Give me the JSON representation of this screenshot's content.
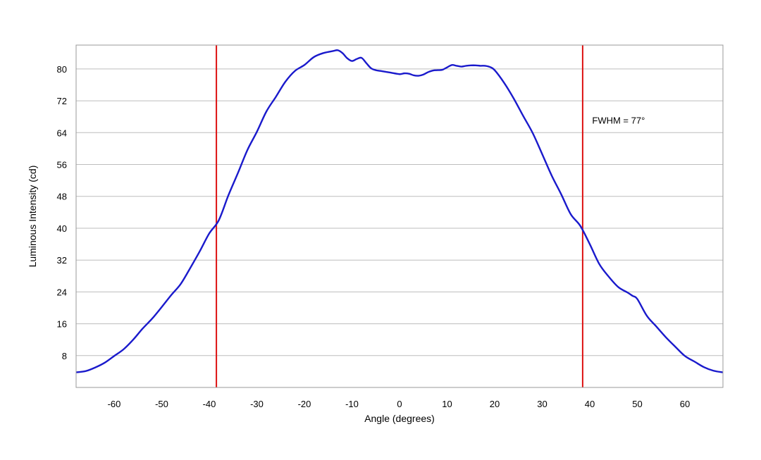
{
  "chart_data": {
    "type": "line",
    "title": "",
    "xlabel": "Angle (degrees)",
    "ylabel": "Luminous Intensity (cd)",
    "xlim": [
      -68,
      68
    ],
    "ylim": [
      0,
      86
    ],
    "xticks": [
      -60,
      -50,
      -40,
      -30,
      -20,
      -10,
      0,
      10,
      20,
      30,
      40,
      50,
      60
    ],
    "yticks": [
      8,
      16,
      24,
      32,
      40,
      48,
      56,
      64,
      72,
      80
    ],
    "grid": "horizontal",
    "legend": "none",
    "colors": {
      "line": "#1a1acc",
      "fwhm_markers": "#dd1111",
      "grid": "#bdbdbd",
      "frame": "#9a9a9a"
    },
    "series": [
      {
        "x": [
          -68,
          -66,
          -64,
          -62,
          -60,
          -58,
          -56,
          -54,
          -52,
          -50,
          -48,
          -46,
          -44,
          -42,
          -40,
          -38,
          -36,
          -34,
          -32,
          -30,
          -28,
          -26,
          -24,
          -22,
          -20,
          -18,
          -16,
          -14,
          -13,
          -12,
          -11,
          -10,
          -9,
          -8,
          -7,
          -6,
          -5,
          -4,
          -2,
          0,
          1,
          2,
          3,
          4,
          5,
          6,
          7,
          8,
          9,
          10,
          11,
          12,
          13,
          14,
          15,
          16,
          17,
          18,
          19,
          20,
          22,
          24,
          26,
          28,
          30,
          32,
          34,
          36,
          38,
          40,
          42,
          44,
          46,
          48,
          49,
          50,
          52,
          54,
          56,
          58,
          60,
          62,
          64,
          66,
          68
        ],
        "y": [
          3.8,
          4.1,
          5.0,
          6.2,
          7.9,
          9.6,
          12.0,
          14.8,
          17.3,
          20.2,
          23.2,
          26.0,
          30.0,
          34.2,
          38.7,
          42.0,
          48.2,
          53.8,
          59.6,
          64.2,
          69.3,
          73.0,
          76.8,
          79.5,
          81.0,
          83.0,
          84.0,
          84.5,
          84.7,
          84.0,
          82.7,
          82.0,
          82.5,
          82.8,
          81.5,
          80.2,
          79.7,
          79.5,
          79.1,
          78.7,
          78.9,
          78.8,
          78.4,
          78.3,
          78.6,
          79.2,
          79.6,
          79.7,
          79.8,
          80.4,
          81.0,
          80.8,
          80.6,
          80.8,
          80.9,
          80.9,
          80.8,
          80.8,
          80.5,
          79.7,
          76.5,
          72.6,
          68.2,
          63.9,
          58.6,
          53.2,
          48.5,
          43.5,
          40.6,
          36.0,
          31.0,
          27.8,
          25.2,
          23.8,
          23.0,
          22.2,
          18.0,
          15.3,
          12.6,
          10.2,
          7.9,
          6.5,
          5.1,
          4.2,
          3.8
        ]
      }
    ],
    "vlines": [
      -38.5,
      38.5
    ],
    "annotation": {
      "text": "FWHM = 77°",
      "x": 40.5,
      "y": 67
    }
  }
}
